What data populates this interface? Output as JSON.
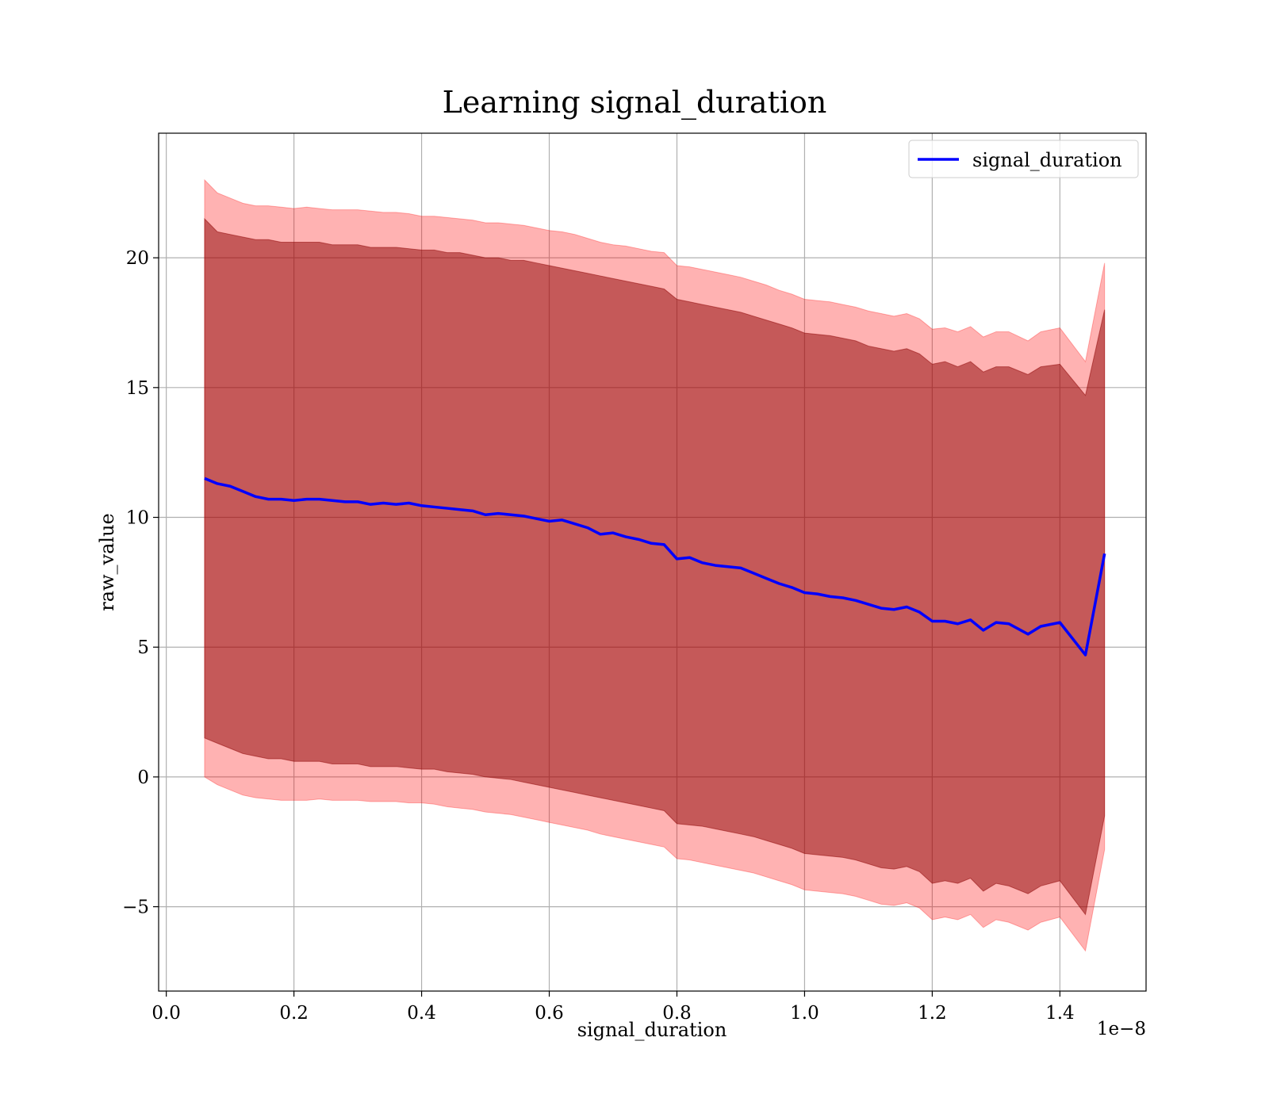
{
  "chart_data": {
    "type": "line",
    "title": "Learning signal_duration",
    "xlabel": "signal_duration",
    "ylabel": "raw_value",
    "x_offset_label": "1e−8",
    "xlim": [
      -0.012,
      1.535
    ],
    "ylim": [
      -8.25,
      24.8
    ],
    "grid": true,
    "legend_position": "top-right",
    "x_ticks": [
      {
        "value": 0.0,
        "label": "0.0"
      },
      {
        "value": 0.2,
        "label": "0.2"
      },
      {
        "value": 0.4,
        "label": "0.4"
      },
      {
        "value": 0.6,
        "label": "0.6"
      },
      {
        "value": 0.8,
        "label": "0.8"
      },
      {
        "value": 1.0,
        "label": "1.0"
      },
      {
        "value": 1.2,
        "label": "1.2"
      },
      {
        "value": 1.4,
        "label": "1.4"
      }
    ],
    "y_ticks": [
      {
        "value": -5,
        "label": "−5"
      },
      {
        "value": 0,
        "label": "0"
      },
      {
        "value": 5,
        "label": "5"
      },
      {
        "value": 10,
        "label": "10"
      },
      {
        "value": 15,
        "label": "15"
      },
      {
        "value": 20,
        "label": "20"
      }
    ],
    "series": [
      {
        "name": "signal_duration",
        "color": "#0000ff",
        "x": [
          0.06,
          0.08,
          0.1,
          0.12,
          0.14,
          0.16,
          0.18,
          0.2,
          0.22,
          0.24,
          0.26,
          0.28,
          0.3,
          0.32,
          0.34,
          0.36,
          0.38,
          0.4,
          0.42,
          0.44,
          0.46,
          0.48,
          0.5,
          0.52,
          0.54,
          0.56,
          0.58,
          0.6,
          0.62,
          0.64,
          0.66,
          0.68,
          0.7,
          0.72,
          0.74,
          0.76,
          0.78,
          0.8,
          0.82,
          0.84,
          0.86,
          0.88,
          0.9,
          0.92,
          0.94,
          0.96,
          0.98,
          1.0,
          1.02,
          1.04,
          1.06,
          1.08,
          1.1,
          1.12,
          1.14,
          1.16,
          1.18,
          1.2,
          1.22,
          1.24,
          1.26,
          1.28,
          1.3,
          1.32,
          1.35,
          1.37,
          1.4,
          1.44,
          1.47
        ],
        "y": [
          11.5,
          11.3,
          11.2,
          11.0,
          10.8,
          10.7,
          10.7,
          10.65,
          10.7,
          10.7,
          10.65,
          10.6,
          10.6,
          10.5,
          10.55,
          10.5,
          10.55,
          10.45,
          10.4,
          10.35,
          10.3,
          10.25,
          10.1,
          10.15,
          10.1,
          10.05,
          9.95,
          9.85,
          9.9,
          9.75,
          9.6,
          9.35,
          9.4,
          9.25,
          9.15,
          9.0,
          8.95,
          8.4,
          8.45,
          8.25,
          8.15,
          8.1,
          8.05,
          7.85,
          7.65,
          7.45,
          7.3,
          7.1,
          7.05,
          6.95,
          6.9,
          6.8,
          6.65,
          6.5,
          6.45,
          6.55,
          6.35,
          6.0,
          6.0,
          5.9,
          6.05,
          5.65,
          5.95,
          5.9,
          5.5,
          5.8,
          5.95,
          4.7,
          8.6
        ],
        "band_inner": {
          "color": "#8b0000",
          "upper": [
            21.5,
            21.0,
            20.9,
            20.8,
            20.7,
            20.7,
            20.6,
            20.6,
            20.6,
            20.6,
            20.5,
            20.5,
            20.5,
            20.4,
            20.4,
            20.4,
            20.35,
            20.3,
            20.3,
            20.2,
            20.2,
            20.1,
            20.0,
            20.0,
            19.9,
            19.9,
            19.8,
            19.7,
            19.6,
            19.5,
            19.4,
            19.3,
            19.2,
            19.1,
            19.0,
            18.9,
            18.8,
            18.4,
            18.3,
            18.2,
            18.1,
            18.0,
            17.9,
            17.75,
            17.6,
            17.45,
            17.3,
            17.1,
            17.05,
            17.0,
            16.9,
            16.8,
            16.6,
            16.5,
            16.4,
            16.5,
            16.3,
            15.9,
            16.0,
            15.8,
            16.0,
            15.6,
            15.8,
            15.8,
            15.5,
            15.8,
            15.9,
            14.7,
            18.0
          ],
          "lower": [
            1.5,
            1.3,
            1.1,
            0.9,
            0.8,
            0.7,
            0.7,
            0.6,
            0.6,
            0.6,
            0.5,
            0.5,
            0.5,
            0.4,
            0.4,
            0.4,
            0.35,
            0.3,
            0.3,
            0.2,
            0.15,
            0.1,
            0.0,
            -0.05,
            -0.1,
            -0.2,
            -0.3,
            -0.4,
            -0.5,
            -0.6,
            -0.7,
            -0.8,
            -0.9,
            -1.0,
            -1.1,
            -1.2,
            -1.3,
            -1.8,
            -1.85,
            -1.9,
            -2.0,
            -2.1,
            -2.2,
            -2.3,
            -2.45,
            -2.6,
            -2.75,
            -2.95,
            -3.0,
            -3.05,
            -3.1,
            -3.2,
            -3.35,
            -3.5,
            -3.55,
            -3.45,
            -3.65,
            -4.1,
            -4.0,
            -4.1,
            -3.9,
            -4.4,
            -4.1,
            -4.2,
            -4.5,
            -4.2,
            -4.0,
            -5.3,
            -1.5
          ]
        },
        "band_outer": {
          "color": "#ff0000",
          "upper": [
            23.0,
            22.5,
            22.3,
            22.1,
            22.0,
            22.0,
            21.95,
            21.9,
            21.95,
            21.9,
            21.85,
            21.85,
            21.85,
            21.8,
            21.75,
            21.75,
            21.7,
            21.6,
            21.6,
            21.55,
            21.5,
            21.45,
            21.35,
            21.35,
            21.3,
            21.25,
            21.15,
            21.05,
            21.0,
            20.9,
            20.75,
            20.6,
            20.5,
            20.45,
            20.35,
            20.25,
            20.2,
            19.7,
            19.65,
            19.55,
            19.45,
            19.35,
            19.25,
            19.1,
            18.95,
            18.75,
            18.6,
            18.4,
            18.35,
            18.3,
            18.2,
            18.1,
            17.95,
            17.85,
            17.75,
            17.85,
            17.65,
            17.25,
            17.3,
            17.15,
            17.35,
            16.95,
            17.15,
            17.15,
            16.8,
            17.15,
            17.3,
            16.0,
            19.8
          ],
          "lower": [
            0.0,
            -0.3,
            -0.5,
            -0.7,
            -0.8,
            -0.85,
            -0.9,
            -0.9,
            -0.9,
            -0.85,
            -0.9,
            -0.9,
            -0.9,
            -0.95,
            -0.95,
            -0.95,
            -1.0,
            -1.0,
            -1.05,
            -1.15,
            -1.2,
            -1.25,
            -1.35,
            -1.4,
            -1.45,
            -1.55,
            -1.65,
            -1.75,
            -1.85,
            -1.95,
            -2.05,
            -2.2,
            -2.3,
            -2.4,
            -2.5,
            -2.6,
            -2.7,
            -3.15,
            -3.2,
            -3.3,
            -3.4,
            -3.5,
            -3.6,
            -3.7,
            -3.85,
            -4.0,
            -4.15,
            -4.35,
            -4.4,
            -4.45,
            -4.5,
            -4.6,
            -4.75,
            -4.9,
            -4.95,
            -4.85,
            -5.05,
            -5.5,
            -5.4,
            -5.5,
            -5.3,
            -5.8,
            -5.5,
            -5.6,
            -5.9,
            -5.6,
            -5.4,
            -6.7,
            -2.8
          ]
        }
      }
    ]
  }
}
